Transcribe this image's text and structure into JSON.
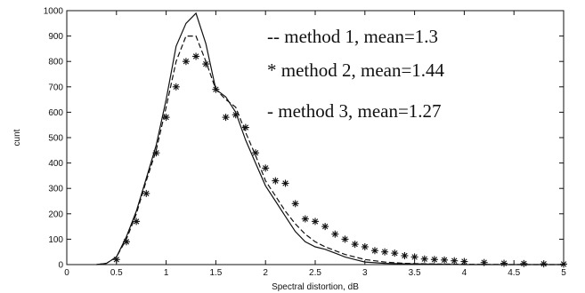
{
  "chart_data": {
    "type": "line",
    "title": "",
    "xlabel": "Spectral distortion, dB",
    "ylabel": "cunt",
    "xlim": [
      0,
      5
    ],
    "ylim": [
      0,
      1000
    ],
    "xticks": [
      "0",
      "0.5",
      "1",
      "1.5",
      "2",
      "2.5",
      "3",
      "3.5",
      "4",
      "4.5",
      "5"
    ],
    "yticks": [
      "0",
      "100",
      "200",
      "300",
      "400",
      "500",
      "600",
      "700",
      "800",
      "900",
      "1000"
    ],
    "grid": false,
    "legend_position": "top-right",
    "series": [
      {
        "name": "-- method 1, mean=1.3",
        "style": "dashed",
        "x": [
          0.3,
          0.4,
          0.5,
          0.6,
          0.7,
          0.8,
          0.9,
          1.0,
          1.1,
          1.2,
          1.3,
          1.4,
          1.5,
          1.6,
          1.7,
          1.8,
          1.9,
          2.0,
          2.1,
          2.2,
          2.3,
          2.4,
          2.5,
          2.6,
          2.7,
          2.8,
          2.9,
          3.0,
          3.2,
          3.4,
          3.6,
          3.8,
          4.0,
          4.5,
          5.0
        ],
        "y": [
          0,
          5,
          30,
          100,
          200,
          330,
          450,
          620,
          800,
          900,
          900,
          800,
          690,
          650,
          620,
          520,
          430,
          330,
          270,
          210,
          160,
          120,
          90,
          70,
          55,
          40,
          30,
          20,
          10,
          5,
          3,
          2,
          1,
          0,
          0
        ]
      },
      {
        "name": "* method 2, mean=1.44",
        "style": "markers",
        "x": [
          0.5,
          0.6,
          0.7,
          0.8,
          0.9,
          1.0,
          1.1,
          1.2,
          1.3,
          1.4,
          1.5,
          1.6,
          1.7,
          1.8,
          1.9,
          2.0,
          2.1,
          2.2,
          2.3,
          2.4,
          2.5,
          2.6,
          2.7,
          2.8,
          2.9,
          3.0,
          3.1,
          3.2,
          3.3,
          3.4,
          3.5,
          3.6,
          3.7,
          3.8,
          3.9,
          4.0,
          4.2,
          4.4,
          4.6,
          4.8,
          5.0
        ],
        "y": [
          20,
          90,
          170,
          280,
          440,
          580,
          700,
          800,
          820,
          790,
          690,
          580,
          590,
          540,
          440,
          380,
          330,
          320,
          240,
          180,
          170,
          150,
          120,
          100,
          80,
          70,
          55,
          50,
          45,
          35,
          30,
          22,
          20,
          18,
          15,
          12,
          8,
          5,
          4,
          3,
          2
        ]
      },
      {
        "name": "- method 3, mean=1.27",
        "style": "solid",
        "x": [
          0.3,
          0.4,
          0.5,
          0.6,
          0.7,
          0.8,
          0.9,
          1.0,
          1.1,
          1.2,
          1.3,
          1.4,
          1.5,
          1.6,
          1.7,
          1.8,
          1.9,
          2.0,
          2.1,
          2.2,
          2.3,
          2.4,
          2.5,
          2.6,
          2.7,
          2.8,
          2.9,
          3.0,
          3.2,
          3.4,
          3.6,
          3.8,
          4.0,
          4.5,
          5.0
        ],
        "y": [
          0,
          5,
          30,
          110,
          210,
          340,
          470,
          650,
          860,
          950,
          990,
          870,
          690,
          660,
          600,
          490,
          400,
          310,
          250,
          190,
          130,
          90,
          70,
          60,
          45,
          30,
          20,
          10,
          5,
          3,
          2,
          1,
          0,
          0,
          0
        ]
      }
    ]
  }
}
